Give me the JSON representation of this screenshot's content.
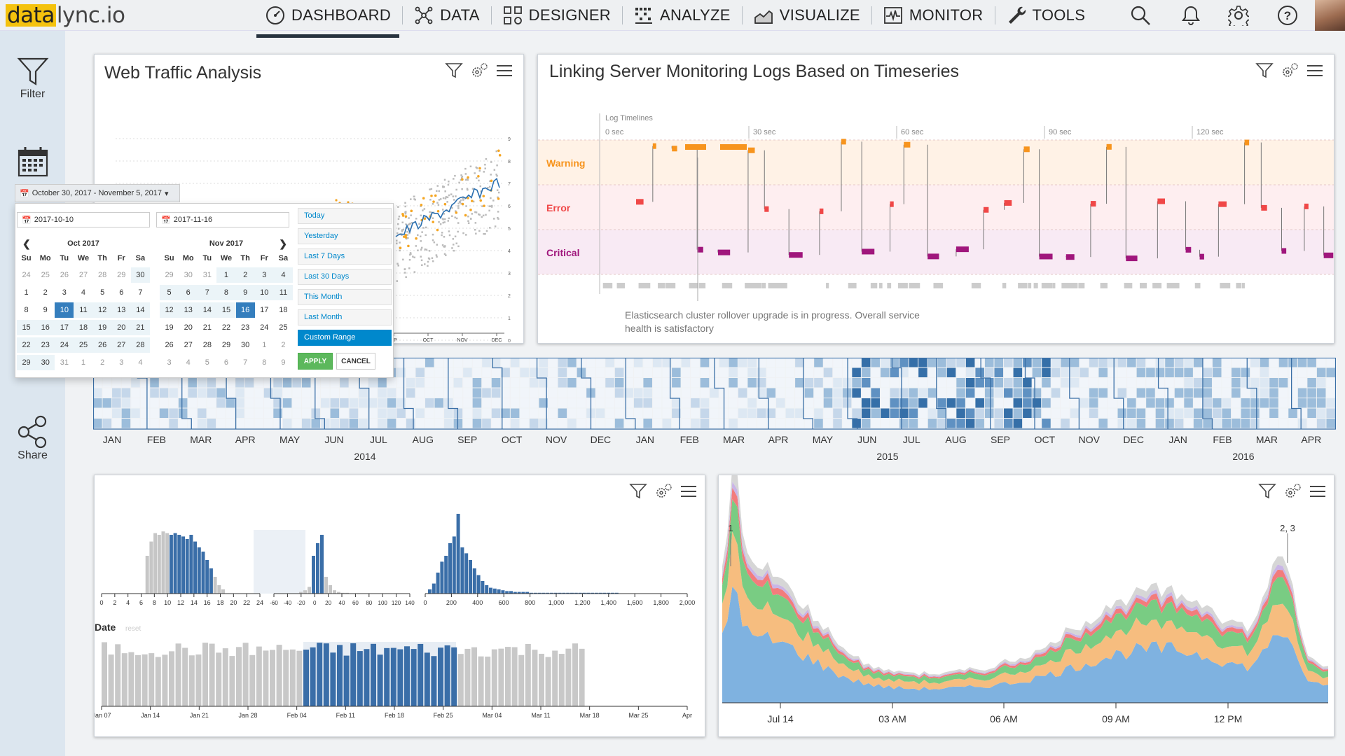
{
  "logo": {
    "highlight": "data",
    "rest": "lync.io"
  },
  "nav": [
    {
      "label": "DASHBOARD",
      "icon": "dashboard-icon"
    },
    {
      "label": "DATA",
      "icon": "data-icon"
    },
    {
      "label": "DESIGNER",
      "icon": "designer-icon"
    },
    {
      "label": "ANALYZE",
      "icon": "analyze-icon"
    },
    {
      "label": "VISUALIZE",
      "icon": "visualize-icon"
    },
    {
      "label": "MONITOR",
      "icon": "monitor-icon"
    },
    {
      "label": "TOOLS",
      "icon": "wrench-icon"
    }
  ],
  "sidebar": {
    "filter": "Filter",
    "share": "Share"
  },
  "web_traffic": {
    "title": "Web Traffic Analysis",
    "x_ticks": [
      "EP",
      "OCT",
      "NOV",
      "DEC"
    ],
    "y_ticks": [
      "9",
      "8",
      "7",
      "6",
      "5",
      "4",
      "3",
      "2",
      "1",
      "0"
    ]
  },
  "datepicker": {
    "button_label": "October 30, 2017 - November 5, 2017",
    "start": "2017-10-10",
    "end": "2017-11-16",
    "dow": [
      "Su",
      "Mo",
      "Tu",
      "We",
      "Th",
      "Fr",
      "Sa"
    ],
    "left_month": "Oct 2017",
    "right_month": "Nov 2017",
    "left_days": [
      "24",
      "25",
      "26",
      "27",
      "28",
      "29",
      "30",
      "1",
      "2",
      "3",
      "4",
      "5",
      "6",
      "7",
      "8",
      "9",
      "10",
      "11",
      "12",
      "13",
      "14",
      "15",
      "16",
      "17",
      "18",
      "19",
      "20",
      "21",
      "22",
      "23",
      "24",
      "25",
      "26",
      "27",
      "28",
      "29",
      "30",
      "31",
      "1",
      "2",
      "3",
      "4"
    ],
    "right_days": [
      "29",
      "30",
      "31",
      "1",
      "2",
      "3",
      "4",
      "5",
      "6",
      "7",
      "8",
      "9",
      "10",
      "11",
      "12",
      "13",
      "14",
      "15",
      "16",
      "17",
      "18",
      "19",
      "20",
      "21",
      "22",
      "23",
      "24",
      "25",
      "26",
      "27",
      "28",
      "29",
      "30",
      "1",
      "2",
      "3",
      "4",
      "5",
      "6",
      "7",
      "8",
      "9"
    ],
    "ranges": [
      "Today",
      "Yesterday",
      "Last 7 Days",
      "Last 30 Days",
      "This Month",
      "Last Month",
      "Custom Range"
    ],
    "apply": "APPLY",
    "cancel": "CANCEL"
  },
  "timeline": {
    "title": "Linking Server Monitoring Logs Based on Timeseries",
    "axis_title": "Log Timelines",
    "ticks": [
      "0 sec",
      "30 sec",
      "60 sec",
      "90 sec",
      "120 sec"
    ],
    "levels": [
      "Warning",
      "Error",
      "Critical"
    ],
    "level_colors": {
      "Warning": "#f7941d",
      "Error": "#f04747",
      "Critical": "#a0167c"
    },
    "notice": "Elasticsearch cluster rollover upgrade is in progress. Overall service health is satisfactory"
  },
  "heatmap": {
    "months": [
      "JAN",
      "FEB",
      "MAR",
      "APR",
      "MAY",
      "JUN",
      "JUL",
      "AUG",
      "SEP",
      "OCT",
      "NOV",
      "DEC",
      "JAN",
      "FEB",
      "MAR",
      "APR",
      "MAY",
      "JUN",
      "JUL",
      "AUG",
      "SEP",
      "OCT",
      "NOV",
      "DEC",
      "JAN",
      "FEB",
      "MAR",
      "APR"
    ],
    "years": [
      "2014",
      "2015",
      "2016"
    ]
  },
  "histograms": {
    "chart1_ticks": [
      "0",
      "2",
      "4",
      "6",
      "8",
      "10",
      "12",
      "14",
      "16",
      "18",
      "20",
      "22",
      "24"
    ],
    "chart2_ticks": [
      "-60",
      "-40",
      "-20",
      "0",
      "20",
      "40",
      "60",
      "80",
      "100",
      "120",
      "140"
    ],
    "chart3_ticks": [
      "0",
      "200",
      "400",
      "600",
      "800",
      "1,000",
      "1,200",
      "1,400",
      "1,600",
      "1,800",
      "2,000"
    ],
    "date_label": "Date",
    "reset_label": "reset",
    "date_ticks": [
      "Jan 07",
      "Jan 14",
      "Jan 21",
      "Jan 28",
      "Feb 04",
      "Feb 11",
      "Feb 18",
      "Feb 25",
      "Mar 04",
      "Mar 11",
      "Mar 18",
      "Mar 25",
      "Apr"
    ]
  },
  "stream": {
    "x_ticks": [
      "Jul 14",
      "03 AM",
      "06 AM",
      "09 AM",
      "12 PM"
    ],
    "annotations": [
      "1",
      "2, 3"
    ],
    "colors": [
      "#7fb2e0",
      "#f6bd7f",
      "#79cc83",
      "#f27c7c",
      "#c9b5e6",
      "#d6d6d6"
    ]
  }
}
